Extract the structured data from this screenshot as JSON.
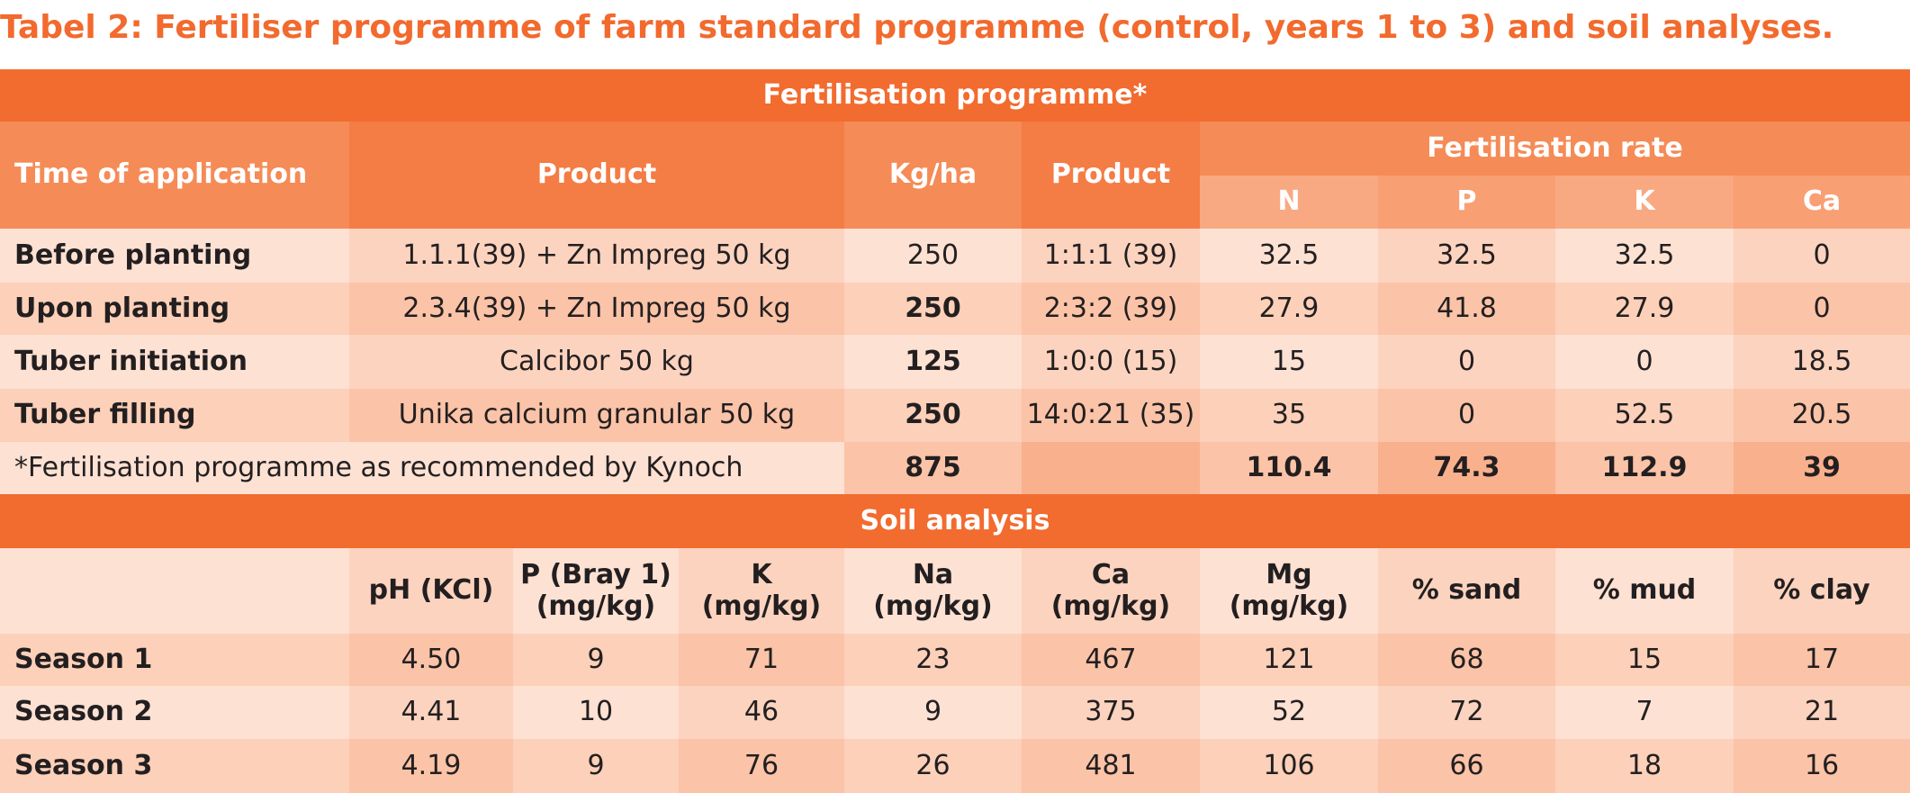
{
  "title": "Tabel 2: Fertiliser programme of farm standard programme (control, years 1 to 3) and soil analyses.",
  "fertilisation": {
    "section_title": "Fertilisation programme*",
    "headers": {
      "time": "Time of application",
      "product": "Product",
      "kg_ha": "Kg/ha",
      "product2": "Product",
      "rate": "Fertilisation rate",
      "nutrients": [
        "N",
        "P",
        "K",
        "Ca"
      ]
    },
    "rows": [
      [
        "Before planting",
        "1.1.1(39) + Zn Impreg 50 kg",
        "250",
        "1:1:1 (39)",
        "32.5",
        "32.5",
        "32.5",
        "0"
      ],
      [
        "Upon planting",
        "2.3.4(39) + Zn Impreg 50 kg",
        "250",
        "2:3:2 (39)",
        "27.9",
        "41.8",
        "27.9",
        "0"
      ],
      [
        "Tuber initiation",
        "Calcibor 50 kg",
        "125",
        "1:0:0 (15)",
        "15",
        "0",
        "0",
        "18.5"
      ],
      [
        "Tuber filling",
        "Unika calcium granular 50 kg",
        "250",
        "14:0:21 (35)",
        "35",
        "0",
        "52.5",
        "20.5"
      ]
    ],
    "total": {
      "note": "*Fertilisation programme as recommended by Kynoch",
      "kg_ha": "875",
      "nutrients": [
        "110.4",
        "74.3",
        "112.9",
        "39"
      ]
    }
  },
  "soil": {
    "section_title": "Soil analysis",
    "headers": [
      "pH (KCl)",
      "P (Bray 1)\n(mg/kg)",
      "K\n(mg/kg)",
      "Na\n(mg/kg)",
      "Ca\n(mg/kg)",
      "Mg\n(mg/kg)",
      "% sand",
      "% mud",
      "% clay"
    ],
    "rows": [
      [
        "Season 1",
        "4.50",
        "9",
        "71",
        "23",
        "467",
        "121",
        "68",
        "15",
        "17"
      ],
      [
        "Season 2",
        "4.41",
        "10",
        "46",
        "9",
        "375",
        "52",
        "72",
        "7",
        "21"
      ],
      [
        "Season 3",
        "4.19",
        "9",
        "76",
        "26",
        "481",
        "106",
        "66",
        "18",
        "16"
      ]
    ]
  }
}
